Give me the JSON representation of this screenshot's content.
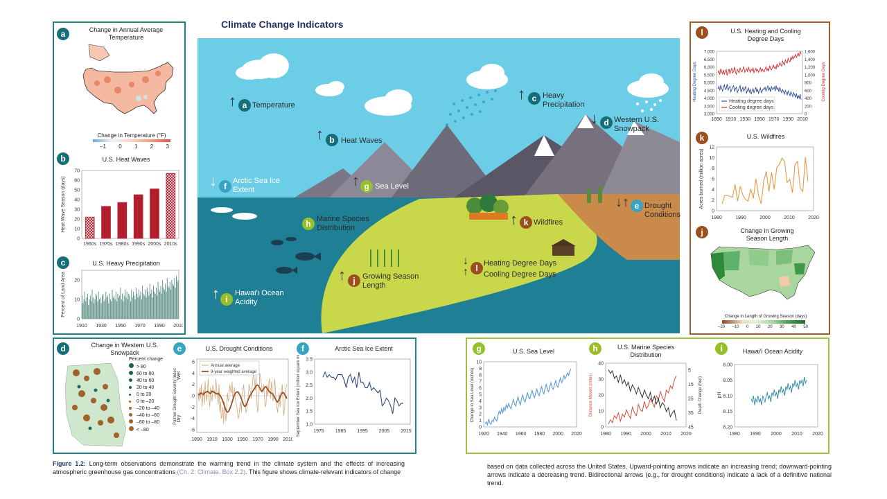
{
  "page_title": "Climate Change Indicators",
  "caption": {
    "figure_label": "Figure 1.2:",
    "left_text": "Long-term observations demonstrate the warming trend in the climate system and the effects of increasing atmospheric greenhouse gas concentrations",
    "left_ref": "(Ch. 2: Climate, Box 2.2)",
    "left_tail": ". This figure shows climate-relevant indicators of change",
    "right_text": "based on data collected across the United States. Upward-pointing arrows indicate an increasing trend; downward-pointing arrows indicate a decreasing trend. Bidirectional arrows (e.g., for drought conditions) indicate a lack of a definitive national trend."
  },
  "scene": {
    "labels": [
      {
        "letter": "a",
        "text": "Temperature",
        "arrow": "up"
      },
      {
        "letter": "b",
        "text": "Heat Waves",
        "arrow": "up"
      },
      {
        "letter": "c",
        "text": "Heavy Precipitation",
        "arrow": "up"
      },
      {
        "letter": "d",
        "text": "Western U.S. Snowpack",
        "arrow": "down"
      },
      {
        "letter": "f",
        "text": "Arctic Sea Ice Extent",
        "arrow": "down"
      },
      {
        "letter": "g",
        "text": "Sea Level",
        "arrow": "up"
      },
      {
        "letter": "h",
        "text": "Marine Species Distribution",
        "arrow": "none"
      },
      {
        "letter": "k",
        "text": "Wildfires",
        "arrow": "up"
      },
      {
        "letter": "e",
        "text": "Drought Conditions",
        "arrow": "both"
      },
      {
        "letter": "j",
        "text": "Growing Season Length",
        "arrow": "up"
      },
      {
        "letter": "l",
        "text": "Heating Degree Days",
        "arrow": "down"
      },
      {
        "letter": "l",
        "text": "Cooling Degree Days",
        "arrow": "up"
      },
      {
        "letter": "i",
        "text": "Hawai'i Ocean Acidity",
        "arrow": "up"
      }
    ]
  },
  "panel_a": {
    "letter": "a",
    "title": "Change in Annual Average Temperature",
    "legend_title": "Change in Temperature (°F)",
    "legend_ticks": [
      "–1",
      "0",
      "1",
      "2",
      "3"
    ]
  },
  "panel_d": {
    "letter": "d",
    "title": "Change in Western U.S. Snowpack",
    "legend_title": "Percent change",
    "legend_items": [
      "> 80",
      "60 to 80",
      "40 to 60",
      "20 to 40",
      "0 to 20",
      "0 to –20",
      "–20 to –40",
      "–40 to –60",
      "–60 to –80",
      "< –80"
    ]
  },
  "panel_j": {
    "letter": "j",
    "title": "Change in Growing Season Length",
    "legend_title": "Change in Length of Growing Season (days)",
    "legend_ticks": [
      "–20",
      "–10",
      "0",
      "10",
      "20",
      "30",
      "40",
      "50"
    ]
  },
  "chart_data": [
    {
      "id": "b",
      "type": "bar",
      "title": "U.S. Heat Waves",
      "ylabel": "Heat Wave Season (days)",
      "categories": [
        "1960s",
        "1970s",
        "1980s",
        "1990s",
        "2000s",
        "2010s"
      ],
      "values": [
        22,
        33,
        37,
        45,
        51,
        67
      ],
      "hatched": [
        true,
        false,
        false,
        false,
        false,
        true
      ],
      "ylim": [
        0,
        70
      ],
      "yticks": [
        "0",
        "10",
        "20",
        "30",
        "40",
        "50",
        "60",
        "70"
      ]
    },
    {
      "id": "c",
      "type": "bar",
      "title": "U.S. Heavy Precipitation",
      "ylabel": "Percent of Land Area",
      "x_start": 1910,
      "x_end": 2015,
      "values": [
        12,
        8,
        10,
        14,
        9,
        11,
        13,
        7,
        10,
        12,
        9,
        15,
        11,
        8,
        10,
        13,
        12,
        9,
        14,
        10,
        11,
        8,
        12,
        13,
        9,
        10,
        14,
        11,
        12,
        8,
        13,
        10,
        9,
        15,
        11,
        12,
        10,
        14,
        9,
        13,
        11,
        12,
        16,
        10,
        13,
        9,
        12,
        15,
        11,
        14,
        10,
        13,
        12,
        9,
        15,
        11,
        14,
        12,
        10,
        16,
        13,
        11,
        15,
        12,
        14,
        10,
        17,
        13,
        12,
        15,
        11,
        16,
        14,
        12,
        18,
        13,
        15,
        11,
        17,
        14,
        13,
        16,
        12,
        19,
        15,
        14,
        17,
        13,
        20,
        16,
        15,
        18,
        14,
        21,
        17,
        16,
        19,
        15,
        20,
        18,
        17,
        21,
        16,
        22,
        19,
        20
      ],
      "ylim": [
        0,
        25
      ],
      "yticks": [
        "0",
        "10",
        "20"
      ],
      "xticks": [
        "1910",
        "1930",
        "1950",
        "1970",
        "1990",
        "2010"
      ]
    },
    {
      "id": "e",
      "type": "line",
      "title": "U.S. Drought Conditions",
      "ylabel": "Palmer Drought Severity Index",
      "wet_label": "Wet",
      "dry_label": "Dry",
      "legend": [
        "Annual average",
        "9-year weighted average"
      ],
      "xticks": [
        "1890",
        "1910",
        "1930",
        "1950",
        "1970",
        "1990",
        "2010"
      ],
      "yticks": [
        "6",
        "4",
        "2",
        "0",
        "-2",
        "-4",
        "-6"
      ],
      "x_start": 1895,
      "x_end": 2015,
      "annual": [
        0.5,
        -1,
        1.5,
        -0.5,
        2,
        -2,
        0,
        1,
        -1.5,
        2.5,
        0.5,
        -1,
        1,
        3,
        -0.5,
        -2,
        1.5,
        0,
        -1,
        2,
        0.5,
        1,
        -0.5,
        3,
        1,
        0,
        -1.5,
        2,
        -3,
        -1,
        -4,
        -3.5,
        -2,
        -5,
        -1,
        -3,
        -4.5,
        -2,
        0.5,
        -1,
        -0.5,
        2,
        1,
        0.5,
        2.5,
        -1,
        0,
        1.5,
        -0.5,
        -1,
        -2,
        -3,
        -4,
        -3.5,
        -2,
        -1,
        -3,
        0.5,
        1,
        2,
        -0.5,
        -1,
        -3,
        -2.5,
        -1,
        0,
        2,
        1,
        0.5,
        -0.5,
        1.5,
        3,
        4,
        2.5,
        1,
        3.5,
        -1,
        -3,
        -2,
        1,
        4,
        3,
        2,
        0.5,
        1,
        2,
        -0.5,
        -2,
        -1.5,
        2,
        0,
        1,
        3,
        2,
        -0.5,
        2.5,
        1,
        -1,
        0.5,
        3,
        1.5,
        -1,
        -2,
        -3,
        -1,
        0.5,
        -2,
        0,
        1,
        2,
        -1,
        -3.5,
        -2,
        0,
        1.5,
        2
      ],
      "smooth": [
        0.3,
        0.2,
        0.4,
        0.5,
        0.3,
        0.2,
        0.5,
        0.6,
        0.7,
        0.8,
        0.6,
        0.4,
        0.5,
        0.8,
        0.7,
        0.6,
        0.5,
        0.4,
        0.3,
        0.4,
        0.2,
        0,
        -0.4,
        -0.8,
        -1.3,
        -1.9,
        -2.4,
        -2.8,
        -2.9,
        -2.7,
        -2.3,
        -1.8,
        -1.2,
        -0.6,
        0,
        0.4,
        0.6,
        0.7,
        0.6,
        0.3,
        -0.1,
        -0.6,
        -1.1,
        -1.6,
        -1.9,
        -1.8,
        -1.4,
        -0.9,
        -0.4,
        0,
        0.3,
        0.6,
        0.9,
        1.2,
        1.5,
        1.8,
        1.9,
        1.8,
        1.5,
        1.1,
        0.8,
        0.9,
        1.2,
        1.5,
        1.6,
        1.4,
        1.1,
        0.8,
        0.6,
        0.5,
        0.4,
        0.2,
        -0.1,
        -0.5,
        -0.9,
        -1.1,
        -0.9,
        -0.5,
        0,
        0.4,
        0.6,
        0.5,
        0.2,
        -0.2,
        -0.5
      ]
    },
    {
      "id": "f",
      "type": "line",
      "title": "Arctic Sea Ice Extent",
      "ylabel": "September Sea Ice Extent (million square miles)",
      "x_start": 1979,
      "x_end": 2017,
      "values": [
        2.8,
        3.0,
        2.8,
        2.9,
        2.8,
        2.8,
        2.7,
        2.9,
        2.9,
        2.9,
        2.7,
        2.4,
        2.8,
        2.9,
        2.6,
        2.8,
        2.4,
        3.0,
        2.6,
        2.6,
        2.4,
        2.4,
        2.6,
        2.3,
        2.4,
        2.3,
        2.2,
        2.3,
        1.7,
        1.8,
        2.0,
        1.9,
        1.7,
        1.4,
        2.0,
        1.9,
        1.7,
        1.8,
        1.8
      ],
      "ylim": [
        1.0,
        3.5
      ],
      "yticks": [
        "3.5",
        "3.0",
        "2.5",
        "2.0",
        "1.5",
        "1.0"
      ],
      "xticks": [
        "1975",
        "1985",
        "1995",
        "2005",
        "2015"
      ]
    },
    {
      "id": "g",
      "type": "line",
      "title": "U.S. Sea Level",
      "ylabel": "Change in Sea Level (inches)",
      "x_start": 1920,
      "x_end": 2016,
      "values": [
        0.5,
        0.8,
        0.3,
        1.2,
        0.6,
        0.4,
        1,
        0.8,
        1.5,
        1.1,
        0.9,
        1.8,
        2.4,
        2,
        2.8,
        2.2,
        3,
        2.5,
        3.4,
        2.9,
        3.6,
        3.1,
        2.8,
        3.5,
        4.2,
        3.6,
        3.2,
        4,
        4.6,
        3.8,
        3.4,
        4.4,
        4.9,
        4.1,
        3.8,
        4.6,
        5.3,
        4.6,
        4.3,
        5,
        5.6,
        4.9,
        4.5,
        5.2,
        5.8,
        5.1,
        4.8,
        5.6,
        6.2,
        5.4,
        5.1,
        5.9,
        6.5,
        5.7,
        5.4,
        6.2,
        6.8,
        6,
        5.8,
        6.5,
        7.1,
        6.3,
        6.1,
        6.9,
        7.5,
        6.8,
        7.2,
        7.9,
        7.4,
        7.8,
        8.3,
        7.9,
        8.6,
        8.9
      ],
      "ylim": [
        0,
        10
      ],
      "yticks": [
        "10",
        "9",
        "8",
        "7",
        "6",
        "5",
        "4",
        "3",
        "2",
        "1",
        "0"
      ],
      "xticks": [
        "1920",
        "1940",
        "1960",
        "1980",
        "2000",
        "2020"
      ]
    },
    {
      "id": "h",
      "type": "line",
      "title": "U.S. Marine Species Distribution",
      "ylabel_left": "Distance Moved (miles)",
      "ylabel_right": "Depth Change (feet)",
      "x_start": 1982,
      "x_end": 2016,
      "distance": [
        2,
        5,
        3,
        8,
        6,
        10,
        4,
        9,
        7,
        12,
        9,
        6,
        14,
        10,
        8,
        16,
        12,
        11,
        18,
        13,
        15,
        20,
        17,
        14,
        22,
        19,
        25,
        21,
        18,
        26,
        24,
        29,
        27,
        33,
        36
      ],
      "depth": [
        5,
        8,
        6,
        12,
        10,
        15,
        9,
        16,
        13,
        18,
        15,
        22,
        17,
        20,
        24,
        19,
        23,
        27,
        21,
        25,
        28,
        23,
        30,
        26,
        32,
        28,
        35,
        31,
        33,
        38,
        35,
        42,
        39,
        37,
        45
      ],
      "xticks": [
        "1980",
        "1990",
        "2000",
        "2010",
        "2020"
      ],
      "yticks_left": [
        "40",
        "30",
        "20",
        "10",
        "0"
      ],
      "yticks_right": [
        "5",
        "15",
        "25",
        "35",
        "45"
      ]
    },
    {
      "id": "i",
      "type": "line",
      "title": "Hawai'i Ocean Acidity",
      "ylabel": "pH",
      "x_start": 1989,
      "x_end": 2016,
      "values": [
        8.11,
        8.12,
        8.1,
        8.13,
        8.11,
        8.12,
        8.1,
        8.12,
        8.11,
        8.13,
        8.1,
        8.11,
        8.12,
        8.1,
        8.09,
        8.11,
        8.1,
        8.12,
        8.09,
        8.1,
        8.08,
        8.1,
        8.09,
        8.11,
        8.08,
        8.09,
        8.07,
        8.09,
        8.08,
        8.1,
        8.07,
        8.08,
        8.06,
        8.08,
        8.07,
        8.09,
        8.06,
        8.07,
        8.05,
        8.07,
        8.06,
        8.08,
        8.05,
        8.06,
        8.05,
        8.07,
        8.04,
        8.06,
        8.05
      ],
      "ylim": [
        8.0,
        8.2
      ],
      "yticks": [
        "8.00",
        "8.05",
        "8.10",
        "8.15",
        "8.20"
      ],
      "xticks": [
        "1980",
        "1990",
        "2000",
        "2010",
        "2020"
      ]
    },
    {
      "id": "k",
      "type": "line",
      "title": "U.S. Wildfires",
      "ylabel": "Acres burned (million acres)",
      "x_start": 1983,
      "x_end": 2016,
      "values": [
        1.3,
        2.9,
        2.9,
        2.7,
        2.5,
        5.0,
        1.8,
        4.6,
        2.9,
        2.1,
        1.8,
        4.1,
        2.3,
        6.0,
        2.9,
        1.3,
        5.6,
        7.4,
        3.6,
        7.2,
        4.0,
        8.1,
        8.7,
        9.9,
        9.3,
        5.3,
        5.9,
        3.4,
        8.7,
        9.3,
        4.3,
        3.6,
        10.1,
        5.5
      ],
      "ylim": [
        0,
        12
      ],
      "yticks": [
        "12",
        "10",
        "8",
        "6",
        "4",
        "2",
        "0"
      ],
      "xticks": [
        "1980",
        "1990",
        "2000",
        "2010",
        "2020"
      ]
    },
    {
      "id": "l",
      "type": "line",
      "title": "U.S. Heating and Cooling Degree Days",
      "ylabel_left": "Heating Degree Days",
      "ylabel_right": "Cooling Degree Days",
      "legend": [
        "Heating degree days",
        "Cooling degree days"
      ],
      "x_start": 1895,
      "x_end": 2016,
      "yticks_left": [
        "7,000",
        "6,500",
        "6,000",
        "5,500",
        "5,000",
        "4,500",
        "4,000",
        "3,500",
        "3,000"
      ],
      "yticks_right": [
        "1,600",
        "1,400",
        "1,200",
        "1,000",
        "800",
        "600",
        "400",
        "200",
        "0"
      ],
      "xticks": [
        "1890",
        "1910",
        "1930",
        "1950",
        "1970",
        "1990",
        "2010"
      ],
      "heating": [
        4600,
        4750,
        4500,
        4800,
        4650,
        4450,
        4700,
        4850,
        4550,
        4600,
        4900,
        4500,
        4650,
        4750,
        4400,
        4550,
        4700,
        4800,
        4450,
        4600,
        4700,
        4350,
        4500,
        4650,
        4800,
        4400,
        4550,
        4700,
        4450,
        4600,
        4750,
        4300,
        4500,
        4650,
        4400,
        4550,
        4250,
        4450,
        4600,
        4350,
        4500,
        4700,
        4400,
        4550,
        4300,
        4500,
        4650,
        4350,
        4450,
        4600,
        4550,
        4700,
        4450,
        4600,
        4800,
        4500,
        4650,
        4400,
        4750,
        4550,
        4600,
        4700,
        4450,
        4800,
        4550,
        4650,
        4400,
        4700,
        4500,
        4350,
        4550,
        4400,
        4250,
        4500,
        4350,
        4200,
        4450,
        4300,
        4150,
        4400,
        4250,
        4100,
        4350,
        4200,
        4050,
        4300,
        3950,
        4150,
        4000,
        4250,
        3900
      ],
      "cooling": [
        1050,
        1100,
        1000,
        1150,
        1080,
        1020,
        1120,
        1000,
        1090,
        1130,
        980,
        1060,
        1150,
        1020,
        1100,
        1170,
        1040,
        1080,
        1200,
        1060,
        1010,
        1140,
        1090,
        1050,
        1180,
        1100,
        1070,
        1130,
        1210,
        1060,
        1100,
        1150,
        1080,
        1190,
        1120,
        1060,
        1140,
        1100,
        1170,
        1050,
        1110,
        1160,
        1090,
        1130,
        1060,
        1120,
        1180,
        1080,
        1150,
        1100,
        1070,
        1140,
        1200,
        1110,
        1160,
        1090,
        1230,
        1150,
        1120,
        1190,
        1250,
        1170,
        1210,
        1140,
        1280,
        1200,
        1230,
        1310,
        1260,
        1220,
        1350,
        1290,
        1250,
        1380,
        1320,
        1300,
        1420,
        1360,
        1330,
        1450,
        1390,
        1480,
        1410,
        1460,
        1520,
        1440,
        1500,
        1550,
        1470,
        1590,
        1530
      ]
    }
  ]
}
